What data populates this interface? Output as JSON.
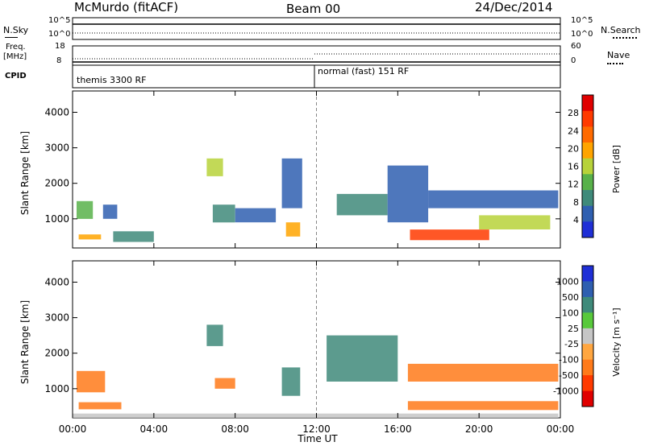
{
  "header": {
    "station": "McMurdo (fitACF)",
    "beam": "Beam 00",
    "date": "24/Dec/2014"
  },
  "strips": {
    "nsky_label": "N.Sky",
    "nsky_ticks": [
      "10^5",
      "10^0"
    ],
    "nsearch_label": "N.Search",
    "nsearch_ticks": [
      "10^5",
      "10^0"
    ],
    "freq_label_1": "Freq.",
    "freq_label_2": "[MHz]",
    "freq_ticks": [
      "18",
      "8"
    ],
    "nave_label": "Nave",
    "nave_ticks": [
      "60",
      "0"
    ],
    "cpid_label": "CPID",
    "cpid_segments": [
      "themis 3300 RF",
      "normal (fast) 151 RF"
    ]
  },
  "panels": {
    "power_ylabel": "Slant Range [km]",
    "velocity_ylabel": "Slant Range [km]",
    "xlabel": "Time UT",
    "power_cbar_label": "Power [dB]",
    "velocity_cbar_label": "Velocity [m s⁻¹]"
  },
  "colors": {
    "power_scale": [
      "#1f2fd6",
      "#2f5fb0",
      "#3f8a7a",
      "#58b14a",
      "#b7d23a",
      "#ffa400",
      "#ff6a00",
      "#ff3a00",
      "#e00000"
    ],
    "velocity_scale": [
      "#e00000",
      "#ff3a00",
      "#ff7a1a",
      "#ffa640",
      "#c6c6c6",
      "#58c93b",
      "#3f8a7a",
      "#2f5fb0",
      "#1f2fd6"
    ]
  },
  "chart_data": [
    {
      "type": "heatmap",
      "title": "Power",
      "ylabel": "Slant Range [km]",
      "xlabel": "Time UT",
      "x_ticks": [
        "00:00",
        "04:00",
        "08:00",
        "12:00",
        "16:00",
        "20:00",
        "00:00"
      ],
      "y_ticks": [
        1000,
        2000,
        3000,
        4000
      ],
      "xlim": [
        "00:00",
        "24:00"
      ],
      "ylim": [
        180,
        4600
      ],
      "colorbar": {
        "label": "Power [dB]",
        "ticks": [
          4,
          8,
          12,
          16,
          20,
          24,
          28
        ]
      },
      "regions": [
        {
          "t0": 0.2,
          "t1": 1.0,
          "r0": 1000,
          "r1": 1500,
          "value": 14
        },
        {
          "t0": 0.3,
          "t1": 1.4,
          "r0": 420,
          "r1": 560,
          "value": 22
        },
        {
          "t0": 1.5,
          "t1": 2.2,
          "r0": 1000,
          "r1": 1400,
          "value": 8
        },
        {
          "t0": 2.0,
          "t1": 4.0,
          "r0": 350,
          "r1": 650,
          "value": 12
        },
        {
          "t0": 6.6,
          "t1": 7.4,
          "r0": 2200,
          "r1": 2700,
          "value": 18
        },
        {
          "t0": 6.9,
          "t1": 8.0,
          "r0": 900,
          "r1": 1400,
          "value": 12
        },
        {
          "t0": 8.0,
          "t1": 10.0,
          "r0": 900,
          "r1": 1300,
          "value": 8
        },
        {
          "t0": 10.3,
          "t1": 11.3,
          "r0": 1300,
          "r1": 2700,
          "value": 8
        },
        {
          "t0": 10.5,
          "t1": 11.2,
          "r0": 500,
          "r1": 900,
          "value": 22
        },
        {
          "t0": 13.0,
          "t1": 15.5,
          "r0": 1100,
          "r1": 1700,
          "value": 10
        },
        {
          "t0": 15.5,
          "t1": 17.5,
          "r0": 900,
          "r1": 2500,
          "value": 8
        },
        {
          "t0": 16.6,
          "t1": 20.5,
          "r0": 400,
          "r1": 700,
          "value": 26
        },
        {
          "t0": 17.5,
          "t1": 23.9,
          "r0": 1300,
          "r1": 1800,
          "value": 8
        },
        {
          "t0": 20.0,
          "t1": 23.5,
          "r0": 700,
          "r1": 1100,
          "value": 16
        }
      ]
    },
    {
      "type": "heatmap",
      "title": "Velocity",
      "ylabel": "Slant Range [km]",
      "xlabel": "Time UT",
      "x_ticks": [
        "00:00",
        "04:00",
        "08:00",
        "12:00",
        "16:00",
        "20:00",
        "00:00"
      ],
      "y_ticks": [
        1000,
        2000,
        3000,
        4000
      ],
      "xlim": [
        "00:00",
        "24:00"
      ],
      "ylim": [
        180,
        4600
      ],
      "colorbar": {
        "label": "Velocity [m s⁻¹]",
        "ticks": [
          1000,
          500,
          100,
          25,
          -25,
          -100,
          -500,
          -1000
        ]
      },
      "regions": [
        {
          "t0": 0.2,
          "t1": 1.6,
          "r0": 900,
          "r1": 1500,
          "value": -150
        },
        {
          "t0": 0.3,
          "t1": 2.4,
          "r0": 420,
          "r1": 620,
          "value": -200
        },
        {
          "t0": 6.6,
          "t1": 7.4,
          "r0": 2200,
          "r1": 2800,
          "value": 300
        },
        {
          "t0": 7.0,
          "t1": 8.0,
          "r0": 1000,
          "r1": 1300,
          "value": -150
        },
        {
          "t0": 10.3,
          "t1": 11.2,
          "r0": 800,
          "r1": 1600,
          "value": 300
        },
        {
          "t0": 12.5,
          "t1": 16.0,
          "r0": 1200,
          "r1": 2500,
          "value": 400
        },
        {
          "t0": 16.5,
          "t1": 23.9,
          "r0": 1200,
          "r1": 1700,
          "value": -200
        },
        {
          "t0": 16.5,
          "t1": 23.9,
          "r0": 400,
          "r1": 650,
          "value": -250
        },
        {
          "t0": 0.0,
          "t1": 23.9,
          "r0": 180,
          "r1": 300,
          "value": 0
        }
      ]
    }
  ]
}
